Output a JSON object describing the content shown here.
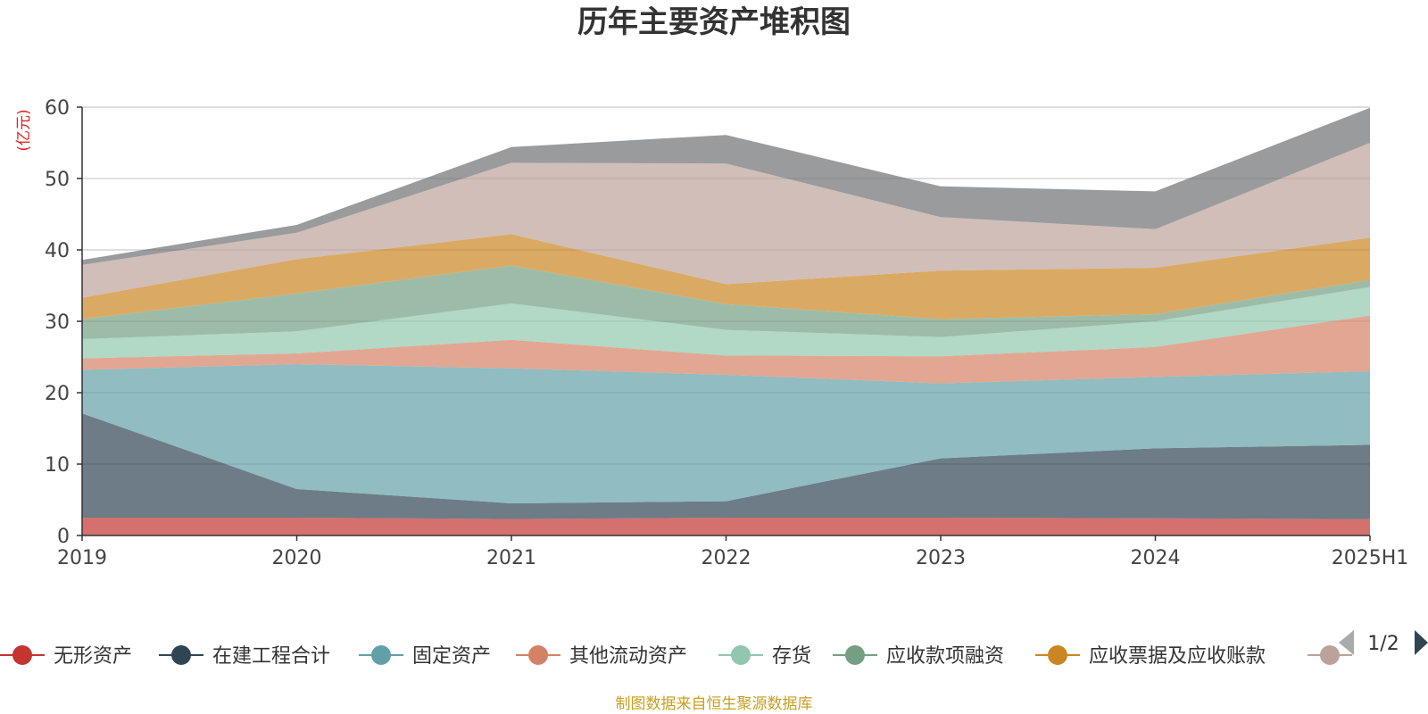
{
  "chart_data": {
    "type": "area",
    "stacked": true,
    "title": "历年主要资产堆积图",
    "unit_label": "(亿元)",
    "source_note": "制图数据来自恒生聚源数据库",
    "categories": [
      "2019",
      "2020",
      "2021",
      "2022",
      "2023",
      "2024",
      "2025H1"
    ],
    "ylim": [
      0,
      60
    ],
    "yticks": [
      0,
      10,
      20,
      30,
      40,
      50,
      60
    ],
    "grid": true,
    "legend_position": "bottom",
    "legend_page": "1/2",
    "series": [
      {
        "name": "无形资产",
        "color": "#c23531",
        "values": [
          2.5,
          2.5,
          2.3,
          2.5,
          2.5,
          2.4,
          2.3
        ]
      },
      {
        "name": "在建工程合计",
        "color": "#2f4554",
        "values": [
          14.6,
          4.0,
          2.2,
          2.3,
          8.3,
          9.8,
          10.4
        ]
      },
      {
        "name": "固定资产",
        "color": "#61a0a8",
        "values": [
          6.1,
          17.5,
          18.9,
          17.7,
          10.5,
          10.0,
          10.3
        ]
      },
      {
        "name": "其他流动资产",
        "color": "#d48265",
        "values": [
          1.6,
          1.5,
          4.0,
          2.7,
          3.8,
          4.2,
          7.8
        ]
      },
      {
        "name": "存货",
        "color": "#91c7ae",
        "values": [
          2.7,
          3.1,
          5.1,
          3.6,
          2.7,
          3.6,
          4.0
        ]
      },
      {
        "name": "应收款项融资",
        "color": "#749f83",
        "values": [
          2.8,
          5.3,
          5.3,
          3.6,
          2.5,
          1.0,
          1.0
        ]
      },
      {
        "name": "应收票据及应收账款",
        "color": "#ca8622",
        "values": [
          3.0,
          4.8,
          4.4,
          2.8,
          6.8,
          6.5,
          5.9
        ]
      },
      {
        "name": "",
        "color": "#bda29a",
        "values": [
          4.6,
          3.7,
          10.0,
          16.9,
          7.5,
          5.4,
          13.3
        ]
      },
      {
        "name": "",
        "color": "#6e7074",
        "values": [
          0.7,
          1.1,
          2.2,
          4.0,
          4.3,
          5.3,
          4.9
        ]
      }
    ]
  }
}
